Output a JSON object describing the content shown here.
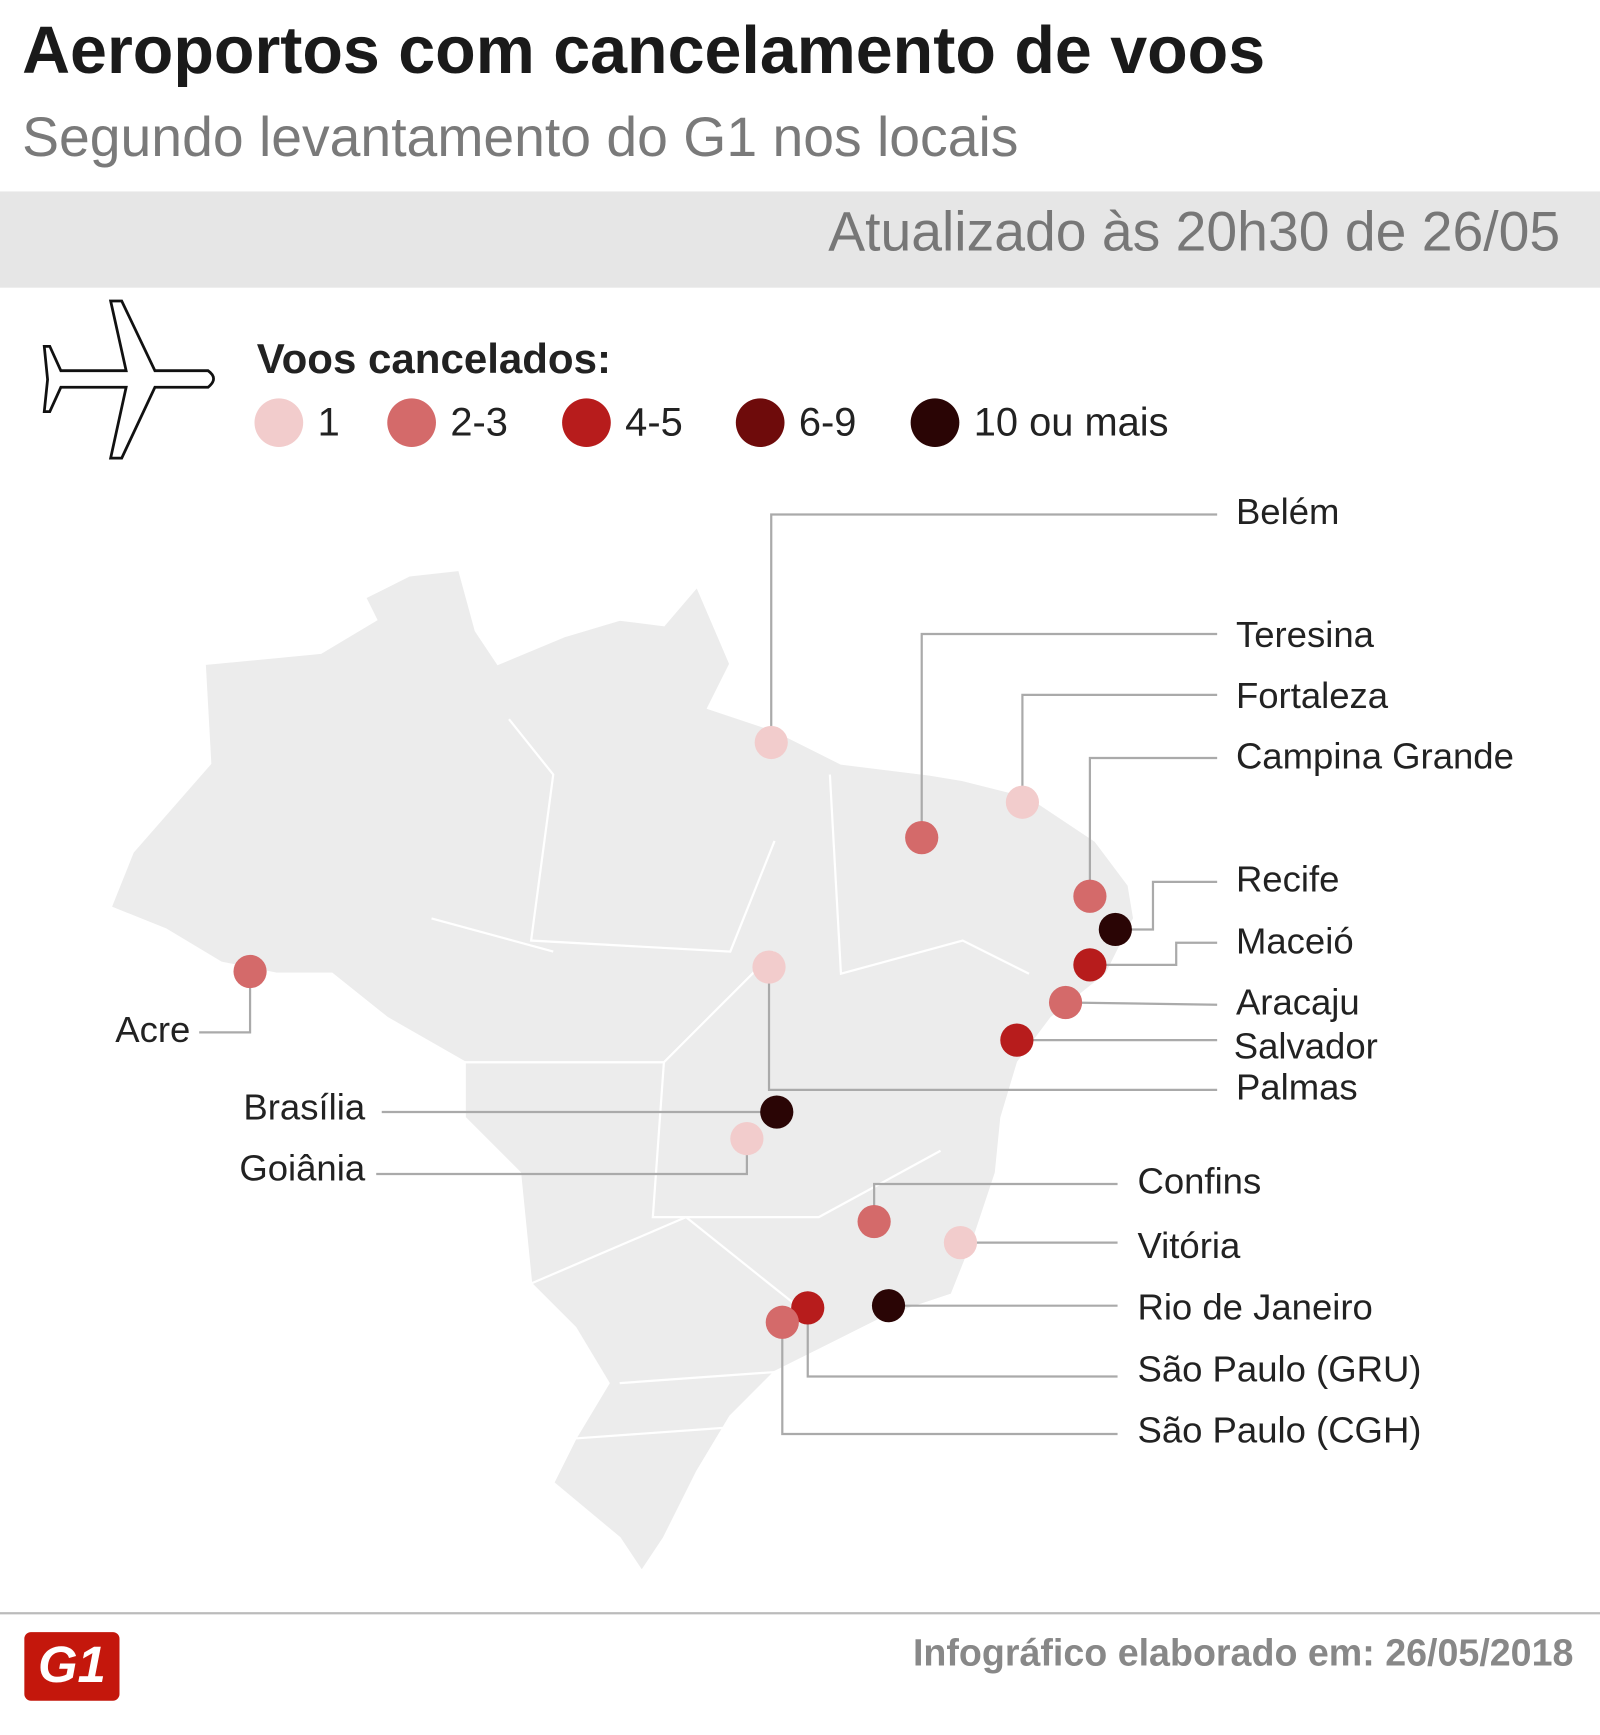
{
  "header": {
    "title": "Aeroportos com cancelamento de voos",
    "subtitle": "Segundo levantamento do G1 nos locais",
    "updated": "Atualizado às 20h30 de 26/05"
  },
  "legend": {
    "title": "Voos cancelados:",
    "items": [
      {
        "label": "1",
        "color": "#f2cccc"
      },
      {
        "label": "2-3",
        "color": "#d46a6a"
      },
      {
        "label": "4-5",
        "color": "#b71c1c"
      },
      {
        "label": "6-9",
        "color": "#6e0b0b"
      },
      {
        "label": "10 ou mais",
        "color": "#2a0505"
      }
    ]
  },
  "airports": [
    {
      "name": "Belém",
      "color": "#f2cccc"
    },
    {
      "name": "Teresina",
      "color": "#d46a6a"
    },
    {
      "name": "Fortaleza",
      "color": "#f2cccc"
    },
    {
      "name": "Campina Grande",
      "color": "#d46a6a"
    },
    {
      "name": "Recife",
      "color": "#2a0505"
    },
    {
      "name": "Maceió",
      "color": "#b71c1c"
    },
    {
      "name": "Aracaju",
      "color": "#d46a6a"
    },
    {
      "name": "Salvador",
      "color": "#b71c1c"
    },
    {
      "name": "Palmas",
      "color": "#f2cccc"
    },
    {
      "name": "Brasília",
      "color": "#2a0505"
    },
    {
      "name": "Goiânia",
      "color": "#f2cccc"
    },
    {
      "name": "Acre",
      "color": "#d46a6a"
    },
    {
      "name": "Confins",
      "color": "#d46a6a"
    },
    {
      "name": "Vitória",
      "color": "#f2cccc"
    },
    {
      "name": "Rio de Janeiro",
      "color": "#2a0505"
    },
    {
      "name": "São Paulo (GRU)",
      "color": "#b71c1c"
    },
    {
      "name": "São Paulo (CGH)",
      "color": "#d46a6a"
    }
  ],
  "footer": {
    "logo": "G1",
    "credit": "Infográfico elaborado em: 26/05/2018"
  }
}
